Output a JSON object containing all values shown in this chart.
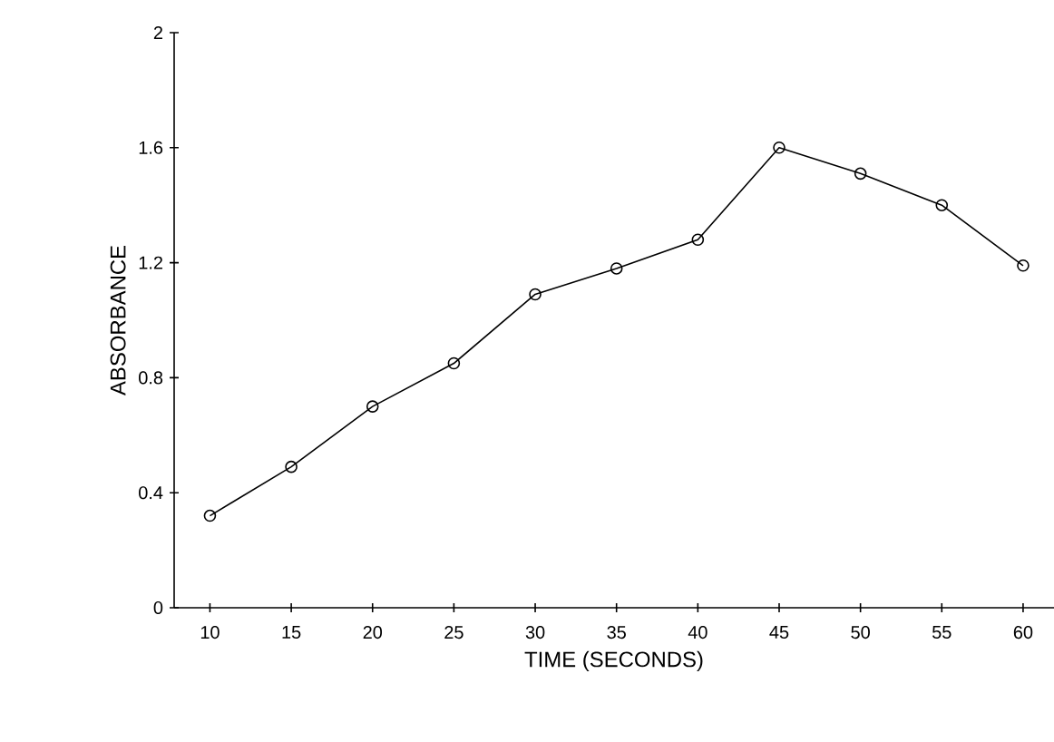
{
  "chart_data": {
    "type": "line",
    "xlabel": "TIME (SECONDS)",
    "ylabel": "ABSORBANCE",
    "x": [
      10,
      15,
      20,
      25,
      30,
      35,
      40,
      45,
      50,
      55,
      60
    ],
    "series": [
      {
        "color": "#000000",
        "values": [
          0.32,
          0.49,
          0.7,
          0.85,
          1.09,
          1.18,
          1.28,
          1.6,
          1.51,
          1.4,
          1.19
        ]
      }
    ],
    "xlim": [
      7.8,
      61.9
    ],
    "ylim": [
      0,
      2
    ],
    "xticks": [
      10,
      15,
      20,
      25,
      30,
      35,
      40,
      45,
      50,
      55,
      60
    ],
    "yticks": [
      0,
      0.4,
      0.8,
      1.2,
      1.6,
      2
    ],
    "marker": "circle",
    "line_style": "solid"
  }
}
